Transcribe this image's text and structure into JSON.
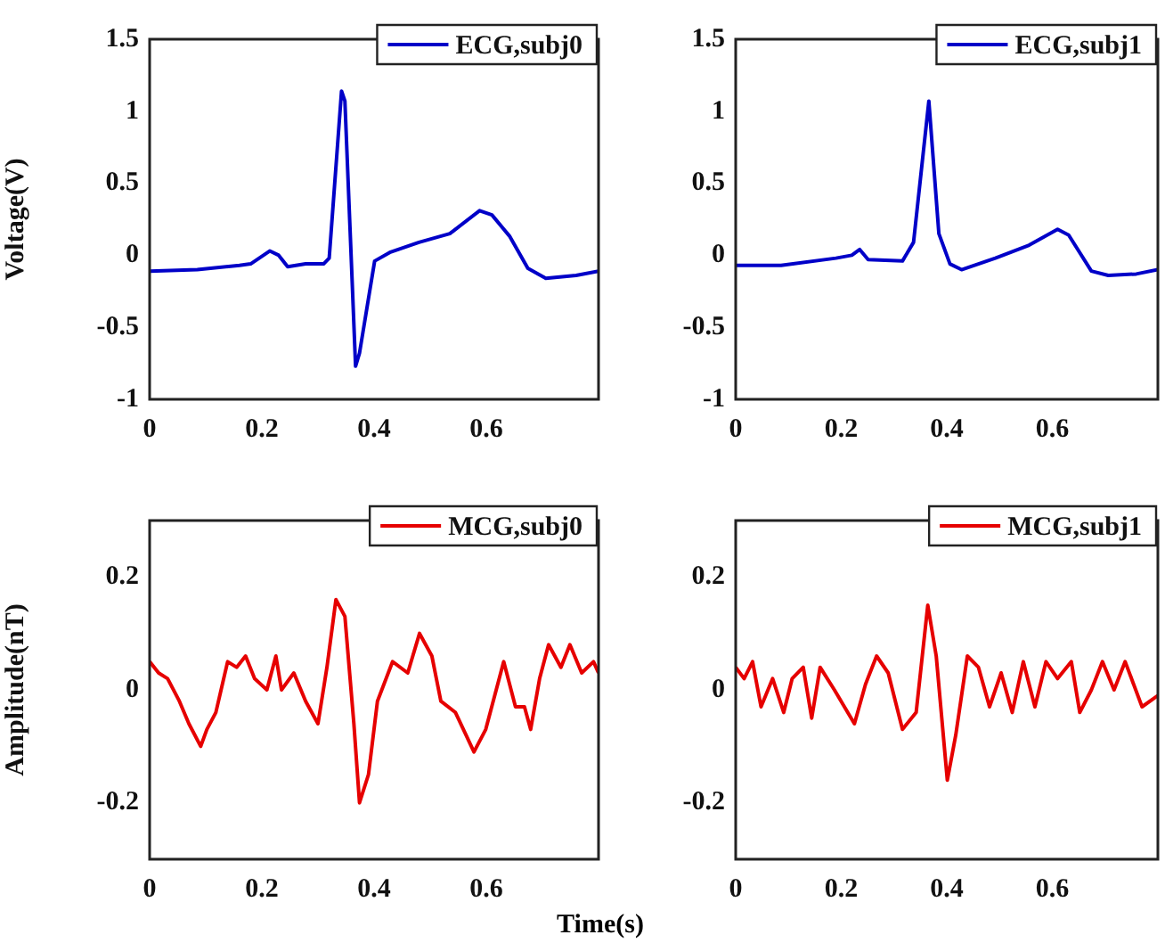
{
  "chart_data": [
    {
      "type": "line",
      "ylabel": "Voltage(V)",
      "xlim": [
        0,
        0.8
      ],
      "xticks": [
        0,
        0.2,
        0.4,
        0.6
      ],
      "ylim": [
        -1,
        1.5
      ],
      "yticks": [
        -1,
        -0.5,
        0,
        0.5,
        1,
        1.5
      ],
      "legend": "top right",
      "series": [
        {
          "name": "ECG,subj0",
          "color": "#0000c8",
          "x": [
            0,
            0.085,
            0.16,
            0.18,
            0.214,
            0.23,
            0.246,
            0.278,
            0.31,
            0.32,
            0.342,
            0.348,
            0.367,
            0.374,
            0.401,
            0.428,
            0.48,
            0.535,
            0.588,
            0.61,
            0.642,
            0.674,
            0.706,
            0.76,
            0.8
          ],
          "values": [
            -0.11,
            -0.1,
            -0.07,
            -0.06,
            0.03,
            0,
            -0.08,
            -0.06,
            -0.06,
            -0.02,
            1.14,
            1.07,
            -0.77,
            -0.68,
            -0.04,
            0.02,
            0.09,
            0.15,
            0.31,
            0.28,
            0.13,
            -0.09,
            -0.16,
            -0.14,
            -0.11
          ]
        }
      ]
    },
    {
      "type": "line",
      "xlim": [
        0,
        0.8
      ],
      "xticks": [
        0,
        0.2,
        0.4,
        0.6
      ],
      "ylim": [
        -1,
        1.5
      ],
      "yticks": [
        -1,
        -0.5,
        0,
        0.5,
        1,
        1.5
      ],
      "legend": "top right",
      "series": [
        {
          "name": "ECG,subj1",
          "color": "#0000c8",
          "x": [
            0,
            0.086,
            0.19,
            0.22,
            0.235,
            0.251,
            0.316,
            0.337,
            0.366,
            0.385,
            0.406,
            0.428,
            0.492,
            0.556,
            0.61,
            0.631,
            0.674,
            0.706,
            0.759,
            0.8
          ],
          "values": [
            -0.07,
            -0.07,
            -0.02,
            0,
            0.04,
            -0.03,
            -0.04,
            0.09,
            1.07,
            0.15,
            -0.06,
            -0.1,
            -0.02,
            0.07,
            0.18,
            0.14,
            -0.11,
            -0.14,
            -0.13,
            -0.1
          ]
        }
      ]
    },
    {
      "type": "line",
      "ylabel": "Amplitude(nT)",
      "xlabel": "Time(s)",
      "xlim": [
        0,
        0.8
      ],
      "xticks": [
        0,
        0.2,
        0.4,
        0.6
      ],
      "ylim": [
        -0.3,
        0.3
      ],
      "yticks": [
        -0.2,
        0,
        0.2
      ],
      "legend": "top right",
      "series": [
        {
          "name": "MCG,subj0",
          "color": "#e60000",
          "x": [
            0,
            0.016,
            0.032,
            0.053,
            0.07,
            0.091,
            0.102,
            0.118,
            0.139,
            0.155,
            0.171,
            0.187,
            0.209,
            0.225,
            0.235,
            0.257,
            0.278,
            0.3,
            0.316,
            0.332,
            0.348,
            0.364,
            0.374,
            0.39,
            0.406,
            0.433,
            0.46,
            0.481,
            0.503,
            0.519,
            0.545,
            0.578,
            0.599,
            0.631,
            0.652,
            0.668,
            0.679,
            0.695,
            0.711,
            0.733,
            0.749,
            0.77,
            0.791,
            0.8
          ],
          "values": [
            0.05,
            0.03,
            0.02,
            -0.02,
            -0.06,
            -0.1,
            -0.07,
            -0.04,
            0.05,
            0.04,
            0.06,
            0.02,
            0,
            0.06,
            0,
            0.03,
            -0.02,
            -0.06,
            0.04,
            0.16,
            0.13,
            -0.06,
            -0.2,
            -0.15,
            -0.02,
            0.05,
            0.03,
            0.1,
            0.06,
            -0.02,
            -0.04,
            -0.11,
            -0.07,
            0.05,
            -0.03,
            -0.03,
            -0.07,
            0.02,
            0.08,
            0.04,
            0.08,
            0.03,
            0.05,
            0.03
          ]
        }
      ]
    },
    {
      "type": "line",
      "xlim": [
        0,
        0.8
      ],
      "xticks": [
        0,
        0.2,
        0.4,
        0.6
      ],
      "ylim": [
        -0.3,
        0.3
      ],
      "yticks": [
        -0.2,
        0,
        0.2
      ],
      "legend": "top right",
      "series": [
        {
          "name": "MCG,subj1",
          "color": "#e60000",
          "x": [
            0,
            0.016,
            0.032,
            0.048,
            0.07,
            0.091,
            0.107,
            0.128,
            0.144,
            0.16,
            0.187,
            0.225,
            0.246,
            0.267,
            0.289,
            0.316,
            0.342,
            0.364,
            0.38,
            0.401,
            0.417,
            0.439,
            0.46,
            0.481,
            0.503,
            0.524,
            0.545,
            0.567,
            0.588,
            0.61,
            0.636,
            0.652,
            0.674,
            0.695,
            0.717,
            0.738,
            0.77,
            0.8
          ],
          "values": [
            0.04,
            0.02,
            0.05,
            -0.03,
            0.02,
            -0.04,
            0.02,
            0.04,
            -0.05,
            0.04,
            0,
            -0.06,
            0.01,
            0.06,
            0.03,
            -0.07,
            -0.04,
            0.15,
            0.06,
            -0.16,
            -0.08,
            0.06,
            0.04,
            -0.03,
            0.03,
            -0.04,
            0.05,
            -0.03,
            0.05,
            0.02,
            0.05,
            -0.04,
            0,
            0.05,
            0,
            0.05,
            -0.03,
            -0.01
          ]
        }
      ]
    }
  ]
}
